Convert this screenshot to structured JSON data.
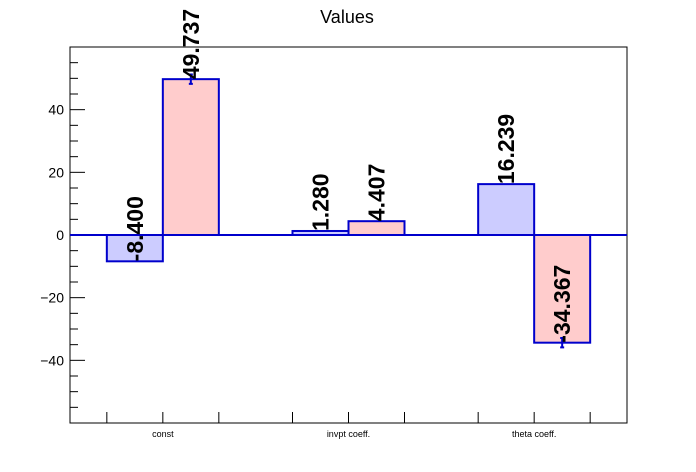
{
  "chart_data": {
    "type": "bar",
    "title": "Values",
    "categories": [
      "const",
      "invpt coeff.",
      "theta coeff."
    ],
    "series": [
      {
        "values": [
          -8.4,
          1.28,
          16.239
        ],
        "labels": [
          "-8.400",
          "1.280",
          "16.239"
        ],
        "errors": [
          0,
          0,
          0
        ]
      },
      {
        "values": [
          49.737,
          4.407,
          -34.367
        ],
        "labels": [
          "49.737",
          "4.407",
          "-34.367"
        ],
        "errors": [
          1.5,
          0,
          1.5
        ]
      }
    ],
    "ylim": [
      -60,
      60
    ],
    "yticks": [
      -40,
      -20,
      0,
      20,
      40
    ],
    "ytick_labels": [
      "−40",
      "−20",
      "0",
      "20",
      "40"
    ],
    "xlabel": "",
    "ylabel": "",
    "grid": false,
    "colors": {
      "series_fill": [
        "#ccccff",
        "#ffcccc"
      ],
      "bar_stroke": "#0000cc",
      "baseline": "#0000cc",
      "axis": "#000000"
    }
  }
}
